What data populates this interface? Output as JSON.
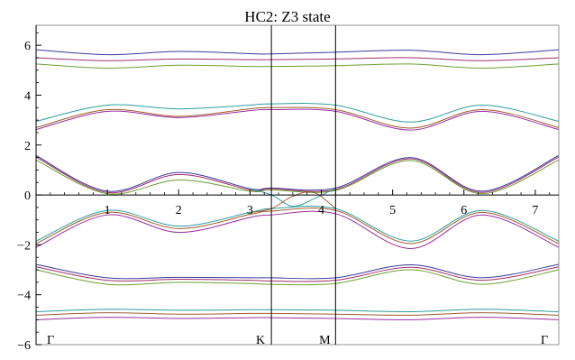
{
  "chart_data": {
    "type": "line",
    "title": "HC2:  Z3 state",
    "xlabel": "",
    "ylabel": "",
    "xlim": [
      0,
      7.33
    ],
    "ylim": [
      -6,
      6.8
    ],
    "x_ticks": [
      1,
      2,
      3,
      4,
      5,
      6,
      7
    ],
    "y_ticks": [
      -6,
      -4,
      -2,
      0,
      2,
      4,
      6
    ],
    "y_tick_labels": [
      "−6",
      "−4",
      "−2",
      "0",
      "2",
      "4",
      "6"
    ],
    "high_symmetry_points": [
      {
        "label": "Γ",
        "x": 0
      },
      {
        "label": "K",
        "x": 3.3
      },
      {
        "label": "M",
        "x": 4.2
      },
      {
        "label": "Γ",
        "x": 7.33
      }
    ],
    "vertical_lines_x": [
      3.3,
      4.2
    ],
    "colors": [
      "#3a3a9e",
      "#a0306a",
      "#6e9e2e",
      "#2e9e9e",
      "#a05a2e",
      "#9a2ea0"
    ],
    "series": [
      {
        "x": [
          0,
          1,
          2,
          3,
          3.3,
          4.2,
          5.25,
          6.25,
          7.33
        ],
        "values": [
          5.82,
          5.62,
          5.75,
          5.66,
          5.65,
          5.72,
          5.8,
          5.62,
          5.82
        ]
      },
      {
        "x": [
          0,
          1,
          2,
          3,
          3.3,
          4.2,
          5.25,
          6.25,
          7.33
        ],
        "values": [
          5.5,
          5.38,
          5.45,
          5.42,
          5.42,
          5.45,
          5.5,
          5.38,
          5.5
        ]
      },
      {
        "x": [
          0,
          1,
          2,
          3,
          3.3,
          4.2,
          5.25,
          6.25,
          7.33
        ],
        "values": [
          5.25,
          5.08,
          5.2,
          5.15,
          5.15,
          5.18,
          5.25,
          5.08,
          5.25
        ]
      },
      {
        "x": [
          0,
          1,
          2,
          3,
          3.3,
          4.2,
          5.25,
          6.25,
          7.33
        ],
        "values": [
          2.95,
          3.6,
          3.45,
          3.6,
          3.65,
          3.6,
          2.92,
          3.6,
          2.95
        ]
      },
      {
        "x": [
          0,
          1,
          2,
          3,
          3.3,
          4.2,
          5.25,
          6.25,
          7.33
        ],
        "values": [
          2.7,
          3.42,
          3.15,
          3.45,
          3.5,
          3.42,
          2.68,
          3.42,
          2.7
        ]
      },
      {
        "x": [
          0,
          1,
          2,
          3,
          3.3,
          4.2,
          5.25,
          6.25,
          7.33
        ],
        "values": [
          2.62,
          3.35,
          3.1,
          3.38,
          3.42,
          3.35,
          2.6,
          3.35,
          2.62
        ]
      },
      {
        "x": [
          0,
          1,
          2,
          3,
          3.3,
          4.2,
          5.25,
          6.25,
          7.33
        ],
        "values": [
          1.58,
          0.15,
          0.9,
          0.25,
          0.28,
          0.28,
          1.5,
          0.15,
          1.58
        ]
      },
      {
        "x": [
          0,
          1,
          2,
          3,
          3.3,
          4.2,
          5.25,
          6.25,
          7.33
        ],
        "values": [
          1.52,
          0.1,
          0.82,
          0.2,
          0.25,
          0.22,
          1.45,
          0.1,
          1.52
        ]
      },
      {
        "x": [
          0,
          1,
          2,
          3,
          3.3,
          4.2,
          5.25,
          6.25,
          7.33
        ],
        "values": [
          1.4,
          0.05,
          0.6,
          0.15,
          0.2,
          0.18,
          1.38,
          0.05,
          1.4
        ]
      },
      {
        "x": [
          0,
          1,
          2,
          3,
          3.3,
          4.2,
          5.25,
          6.25,
          7.33
        ],
        "values": [
          -1.85,
          -0.62,
          -1.25,
          -0.7,
          -0.55,
          -0.55,
          -1.85,
          -0.62,
          -1.85
        ]
      },
      {
        "x": [
          0,
          1,
          2,
          3,
          3.3,
          4.2,
          5.25,
          6.25,
          7.33
        ],
        "values": [
          -1.95,
          -0.7,
          -1.35,
          -0.78,
          -0.65,
          -0.62,
          -1.95,
          -0.7,
          -1.95
        ]
      },
      {
        "x": [
          0,
          1,
          2,
          3,
          3.3,
          4.2,
          5.25,
          6.25,
          7.33
        ],
        "values": [
          -2.1,
          -0.8,
          -1.5,
          -0.9,
          -0.8,
          -0.75,
          -2.15,
          -0.8,
          -2.1
        ]
      },
      {
        "x": [
          0,
          1,
          2,
          3,
          3.3,
          4.2,
          5.25,
          6.25,
          7.33
        ],
        "values": [
          -2.78,
          -3.32,
          -3.3,
          -3.32,
          -3.32,
          -3.32,
          -2.8,
          -3.32,
          -2.78
        ]
      },
      {
        "x": [
          0,
          1,
          2,
          3,
          3.3,
          4.2,
          5.25,
          6.25,
          7.33
        ],
        "values": [
          -2.88,
          -3.42,
          -3.38,
          -3.42,
          -3.45,
          -3.42,
          -2.9,
          -3.42,
          -2.88
        ]
      },
      {
        "x": [
          0,
          1,
          2,
          3,
          3.3,
          4.2,
          5.25,
          6.25,
          7.33
        ],
        "values": [
          -3.0,
          -3.58,
          -3.5,
          -3.55,
          -3.58,
          -3.55,
          -3.0,
          -3.58,
          -3.0
        ]
      },
      {
        "x": [
          0,
          1,
          2,
          3,
          3.3,
          4.2,
          5.25,
          6.25,
          7.33
        ],
        "values": [
          -4.68,
          -4.58,
          -4.62,
          -4.6,
          -4.6,
          -4.62,
          -4.68,
          -4.58,
          -4.68
        ]
      },
      {
        "x": [
          0,
          1,
          2,
          3,
          3.3,
          4.2,
          5.25,
          6.25,
          7.33
        ],
        "values": [
          -4.82,
          -4.72,
          -4.78,
          -4.75,
          -4.75,
          -4.78,
          -4.82,
          -4.72,
          -4.82
        ]
      },
      {
        "x": [
          0,
          1,
          2,
          3,
          3.3,
          4.2,
          5.25,
          6.25,
          7.33
        ],
        "values": [
          -5.0,
          -4.9,
          -4.95,
          -4.92,
          -4.92,
          -4.95,
          -5.0,
          -4.9,
          -5.0
        ]
      }
    ],
    "crossing_bands": [
      {
        "x": [
          3.0,
          3.3,
          3.6,
          3.9,
          4.2
        ],
        "values": [
          0.25,
          0.0,
          -0.45,
          -0.15,
          0.28
        ]
      },
      {
        "x": [
          3.0,
          3.3,
          3.6,
          3.9,
          4.2
        ],
        "values": [
          -0.7,
          -0.55,
          -0.05,
          0.1,
          -0.55
        ]
      }
    ]
  }
}
